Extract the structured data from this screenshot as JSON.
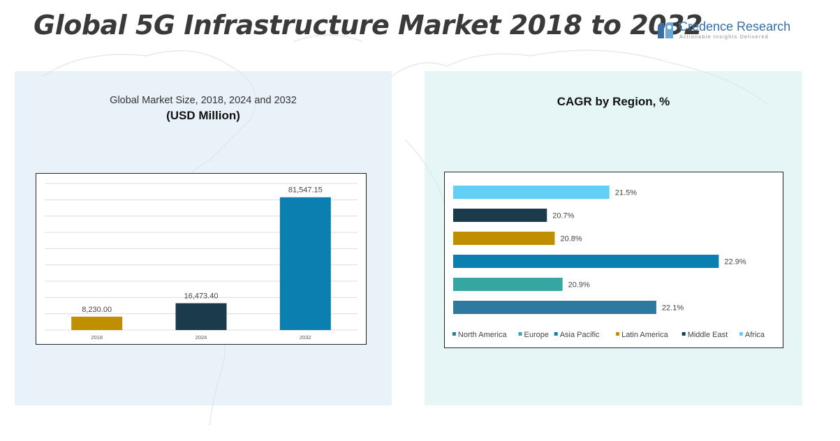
{
  "title": "Global 5G Infrastructure Market 2018 to 2032",
  "logo": {
    "name": "Credence Research",
    "tagline": "Actionable Insights Delivered",
    "icon": "credence-logo-icon"
  },
  "left_panel": {
    "subtitle": "Global Market Size, 2018, 2024 and 2032",
    "unit": "(USD Million)"
  },
  "right_panel": {
    "title": "CAGR by Region, %"
  },
  "chart_data": [
    {
      "type": "bar",
      "title": "Global Market Size, 2018, 2024 and 2032",
      "subtitle": "(USD Million)",
      "categories": [
        "2018",
        "2024",
        "2032"
      ],
      "values": [
        8230.0,
        16473.4,
        81547.15
      ],
      "data_labels": [
        "8,230.00",
        "16,473.40",
        "81,547.15"
      ],
      "colors": [
        "#bf8f00",
        "#1b3a4b",
        "#0b7fb0"
      ],
      "ylim": [
        0,
        90000
      ],
      "grid": true,
      "xlabel": "",
      "ylabel": ""
    },
    {
      "type": "bar",
      "orientation": "horizontal",
      "title": "CAGR by Region, %",
      "categories": [
        "North America",
        "Europe",
        "Asia Pacific",
        "Latin America",
        "Middle East",
        "Africa"
      ],
      "values": [
        22.1,
        20.9,
        22.9,
        20.8,
        20.7,
        21.5
      ],
      "data_labels": [
        "22.1%",
        "20.9%",
        "22.9%",
        "20.8%",
        "20.7%",
        "21.5%"
      ],
      "colors": [
        "#2e79a0",
        "#36a6a3",
        "#0b7fb0",
        "#bf8f00",
        "#1b3a4b",
        "#62d0f5"
      ],
      "xlim": [
        19.5,
        23.2
      ],
      "grid": false,
      "legend": "bottom",
      "xlabel": "",
      "ylabel": ""
    }
  ]
}
